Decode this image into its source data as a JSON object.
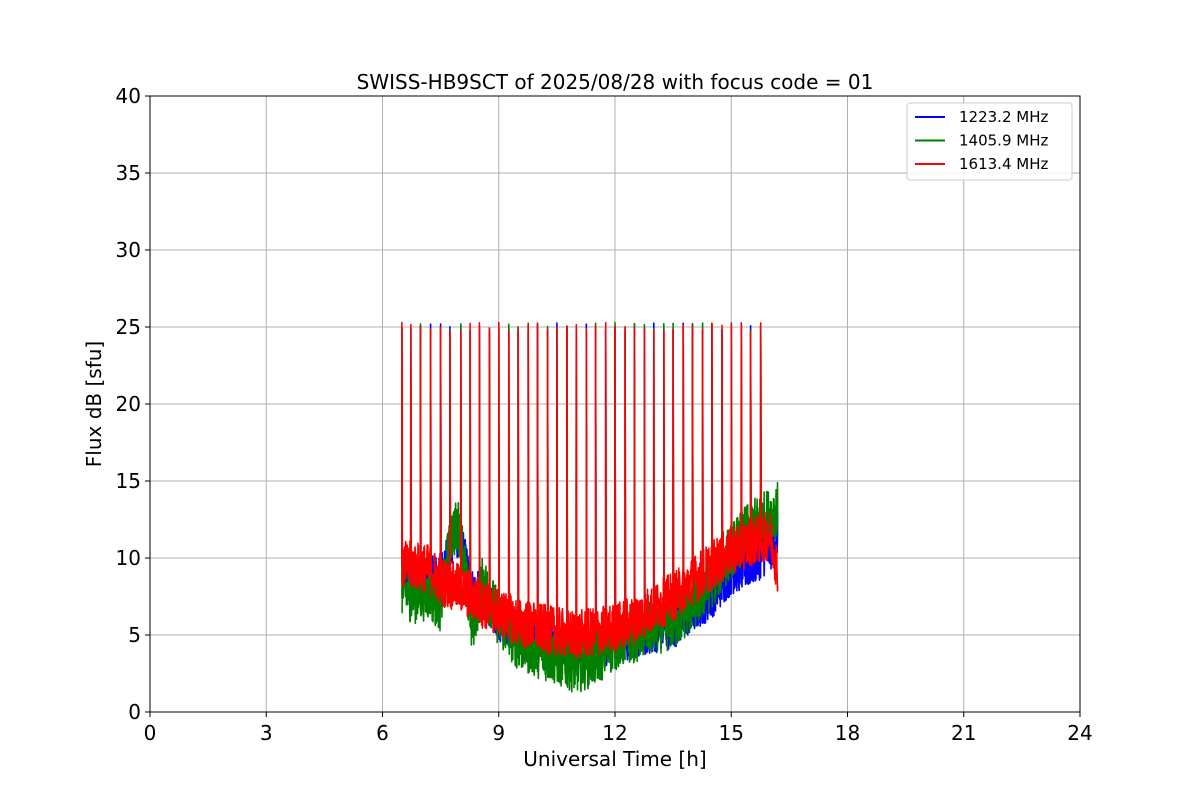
{
  "chart_data": {
    "type": "line",
    "title": "SWISS-HB9SCT of 2025/08/28 with focus code = 01",
    "xlabel": "Universal Time [h]",
    "ylabel": "Flux dB [sfu]",
    "xlim": [
      0,
      24
    ],
    "ylim": [
      0,
      40
    ],
    "xticks": [
      0,
      3,
      6,
      9,
      12,
      15,
      18,
      21,
      24
    ],
    "yticks": [
      0,
      5,
      10,
      15,
      20,
      25,
      30,
      35,
      40
    ],
    "grid": true,
    "legend_position": "top-right",
    "spike_times": [
      6.5,
      6.73,
      6.98,
      7.24,
      7.5,
      7.74,
      8.02,
      8.26,
      8.5,
      8.76,
      9.0,
      9.26,
      9.5,
      9.76,
      10.0,
      10.26,
      10.5,
      10.76,
      11.0,
      11.26,
      11.5,
      11.76,
      12.0,
      12.26,
      12.5,
      12.76,
      13.0,
      13.26,
      13.5,
      13.76,
      14.0,
      14.26,
      14.5,
      14.76,
      15.0,
      15.26,
      15.5,
      15.76
    ],
    "spike_peak": 25,
    "series": [
      {
        "name": "1223.2 MHz",
        "color": "#0000ff",
        "noise": 1.4,
        "x": [
          6.5,
          6.8,
          7.2,
          7.5,
          7.8,
          8.0,
          8.3,
          8.6,
          9.0,
          9.5,
          10.0,
          10.5,
          11.0,
          11.5,
          12.0,
          12.5,
          13.0,
          13.5,
          14.0,
          14.5,
          15.0,
          15.5,
          16.0,
          16.2
        ],
        "y": [
          9.0,
          8.5,
          8.6,
          9.0,
          11.0,
          11.5,
          8.0,
          7.5,
          6.0,
          5.2,
          4.6,
          4.2,
          4.0,
          4.3,
          4.5,
          4.8,
          5.2,
          5.5,
          6.5,
          7.5,
          9.0,
          9.5,
          10.5,
          11.5
        ]
      },
      {
        "name": "1405.9 MHz",
        "color": "#008000",
        "noise": 1.8,
        "x": [
          6.5,
          6.8,
          7.2,
          7.5,
          7.8,
          8.0,
          8.3,
          8.6,
          9.0,
          9.5,
          10.0,
          10.5,
          11.0,
          11.5,
          12.0,
          12.5,
          13.0,
          13.5,
          14.0,
          14.5,
          15.0,
          15.5,
          16.0,
          16.2
        ],
        "y": [
          8.0,
          7.5,
          7.8,
          7.0,
          11.8,
          12.0,
          5.5,
          8.5,
          6.0,
          4.5,
          4.0,
          3.5,
          3.0,
          3.5,
          4.5,
          5.0,
          5.5,
          5.8,
          7.0,
          8.5,
          10.5,
          12.0,
          12.8,
          13.2
        ]
      },
      {
        "name": "1613.4 MHz",
        "color": "#ff0000",
        "noise": 1.6,
        "x": [
          6.5,
          6.8,
          7.2,
          7.5,
          7.8,
          8.0,
          8.3,
          8.6,
          9.0,
          9.5,
          10.0,
          10.5,
          11.0,
          11.5,
          12.0,
          12.5,
          13.0,
          13.5,
          14.0,
          14.5,
          15.0,
          15.5,
          16.0,
          16.2
        ],
        "y": [
          9.5,
          9.5,
          9.3,
          8.5,
          8.2,
          8.0,
          7.5,
          7.0,
          6.5,
          5.8,
          5.5,
          5.2,
          5.0,
          5.2,
          5.5,
          6.0,
          6.8,
          7.5,
          8.5,
          9.5,
          10.5,
          11.0,
          11.5,
          9.3
        ]
      }
    ]
  }
}
